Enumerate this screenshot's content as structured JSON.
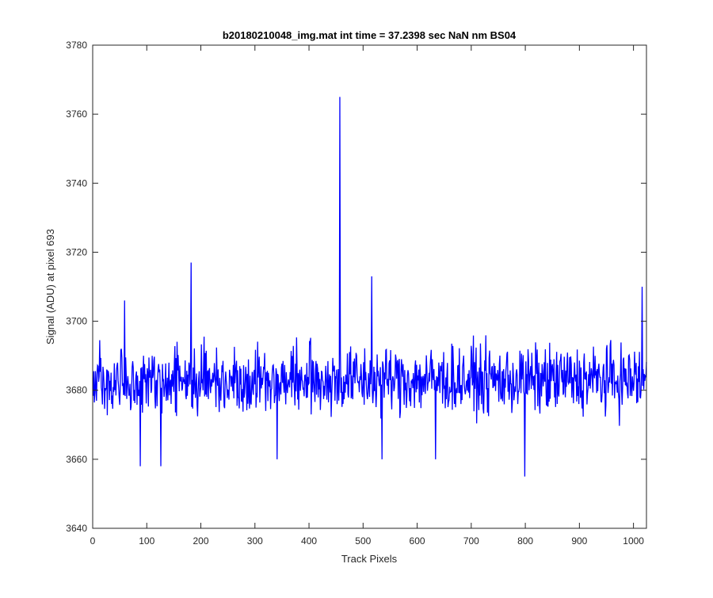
{
  "chart_data": {
    "type": "line",
    "title": "b20180210048_img.mat int time = 37.2398 sec  NaN nm BS04",
    "xlabel": "Track Pixels",
    "ylabel": "Signal (ADU) at pixel 693",
    "xlim": [
      0,
      1024
    ],
    "ylim": [
      3640,
      3780
    ],
    "xticks": [
      0,
      100,
      200,
      300,
      400,
      500,
      600,
      700,
      800,
      900,
      1000
    ],
    "yticks": [
      3640,
      3660,
      3680,
      3700,
      3720,
      3740,
      3760,
      3780
    ],
    "grid": false,
    "line_color": "#0000ff",
    "series": [
      {
        "x_start": 1,
        "x_step": 1,
        "n": 1024,
        "baseline": 3683,
        "noise_amplitude": 9,
        "peaks": [
          {
            "x": 457,
            "y": 3765
          },
          {
            "x": 182,
            "y": 3717
          },
          {
            "x": 516,
            "y": 3713
          },
          {
            "x": 1016,
            "y": 3710
          },
          {
            "x": 59,
            "y": 3706
          },
          {
            "x": 799,
            "y": 3655
          },
          {
            "x": 88,
            "y": 3658
          },
          {
            "x": 126,
            "y": 3658
          },
          {
            "x": 341,
            "y": 3660
          },
          {
            "x": 535,
            "y": 3660
          },
          {
            "x": 634,
            "y": 3660
          }
        ]
      }
    ]
  }
}
